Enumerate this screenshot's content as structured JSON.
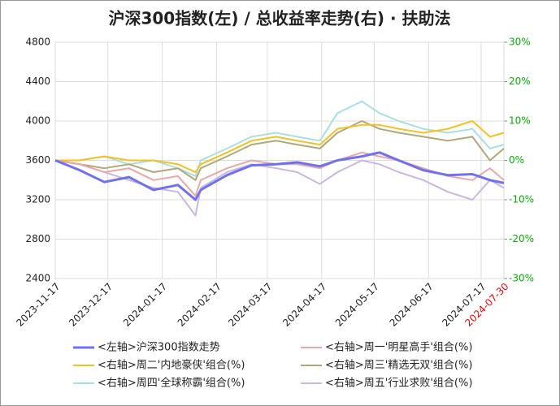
{
  "chart_data": {
    "type": "line",
    "title": "沪深300指数(左)  /  总收益率走势(右) · 扶助法",
    "x": [
      "2023-11-17",
      "2023-12-01",
      "2023-12-15",
      "2023-12-29",
      "2024-01-12",
      "2024-01-26",
      "2024-02-05",
      "2024-02-08",
      "2024-02-23",
      "2024-03-08",
      "2024-03-22",
      "2024-04-03",
      "2024-04-16",
      "2024-04-26",
      "2024-05-10",
      "2024-05-20",
      "2024-05-31",
      "2024-06-14",
      "2024-06-28",
      "2024-07-12",
      "2024-07-22",
      "2024-07-30"
    ],
    "xlim": [
      "2023-11-17",
      "2024-07-30"
    ],
    "xticks": [
      "2023-11-17",
      "2023-12-17",
      "2024-01-17",
      "2024-02-17",
      "2024-03-17",
      "2024-04-17",
      "2024-05-17",
      "2024-06-17",
      "2024-07-17",
      "2024-07-30"
    ],
    "last_xtick_color": "#ff0000",
    "ylim": [
      2400,
      4800
    ],
    "yticks": [
      2400,
      2800,
      3200,
      3600,
      4000,
      4400,
      4800
    ],
    "y2lim": [
      -30,
      30
    ],
    "y2ticks": [
      {
        "value": -30,
        "label": "-30%"
      },
      {
        "value": -20,
        "label": "-20%"
      },
      {
        "value": -10,
        "label": "-10%"
      },
      {
        "value": 0,
        "label": "0%"
      },
      {
        "value": 10,
        "label": "10%"
      },
      {
        "value": 20,
        "label": "20%"
      },
      {
        "value": 30,
        "label": "30%"
      }
    ],
    "y2_tick_color": "#00b000",
    "grid": true,
    "series": [
      {
        "name": "<左轴>沪深300指数走势",
        "color": "#7070f0",
        "values": [
          3600,
          3500,
          3380,
          3430,
          3300,
          3350,
          3200,
          3300,
          3450,
          3550,
          3560,
          3580,
          3540,
          3600,
          3640,
          3680,
          3600,
          3500,
          3450,
          3460,
          3400,
          3370
        ]
      },
      {
        "name": "<右轴>周一'明星高手'组合(%)",
        "color": "#e8a8a8",
        "axis": "y2",
        "values": [
          0,
          -1,
          -3,
          -2,
          -5,
          -4,
          -9,
          -5,
          -2,
          0,
          -1,
          -1,
          -2,
          0,
          2,
          1,
          0,
          -2,
          -4,
          -5,
          -2,
          -5
        ]
      },
      {
        "name": "<右轴>周二'内地豪侠'组合(%)",
        "color": "#f5c020",
        "axis": "y2",
        "values": [
          0,
          0,
          1,
          0,
          0,
          -1,
          -3,
          -1,
          2,
          5,
          6,
          5,
          4,
          8,
          9,
          9,
          8,
          7,
          8,
          10,
          6,
          7
        ]
      },
      {
        "name": "<右轴>周三'精选无双'组合(%)",
        "color": "#b0a878",
        "axis": "y2",
        "values": [
          0,
          -1,
          -2,
          -1,
          -3,
          -2,
          -5,
          -2,
          1,
          4,
          5,
          4,
          3,
          7,
          10,
          8,
          7,
          6,
          5,
          6,
          0,
          3
        ]
      },
      {
        "name": "<右轴>周四'全球称霸'组合(%)",
        "color": "#a8e0e0",
        "axis": "y2",
        "values": [
          0,
          0,
          1,
          -1,
          0,
          -2,
          -4,
          0,
          3,
          6,
          7,
          6,
          5,
          12,
          15,
          12,
          10,
          8,
          7,
          8,
          3,
          4
        ]
      },
      {
        "name": "<右轴>周五'行业求败'组合(%)",
        "color": "#c8b8e0",
        "axis": "y2",
        "values": [
          0,
          -1,
          -3,
          -5,
          -7,
          -8,
          -14,
          -7,
          -3,
          -1,
          -2,
          -3,
          -6,
          -3,
          0,
          -1,
          -3,
          -5,
          -8,
          -10,
          -5,
          -7
        ]
      }
    ]
  }
}
